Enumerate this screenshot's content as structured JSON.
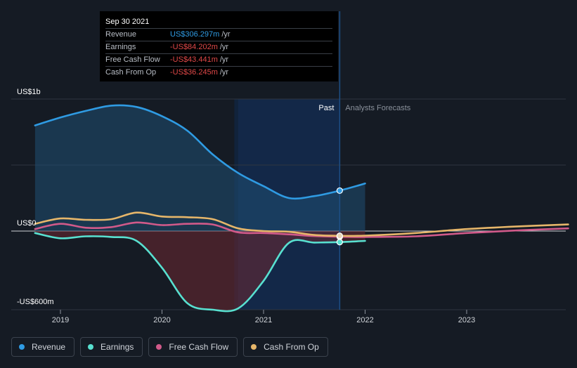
{
  "chart_data": {
    "type": "area",
    "y_unit_labels": [
      "US$1b",
      "US$0",
      "-US$600m"
    ],
    "ylim": [
      -600,
      1000
    ],
    "x_ticks": [
      2019,
      2020,
      2021,
      2022,
      2023
    ],
    "region_labels": {
      "past": "Past",
      "forecast": "Analysts Forecasts"
    },
    "series": [
      {
        "name": "Revenue",
        "color": "#2f9be3",
        "fill": "#1f4e73",
        "x": [
          2018.75,
          2019.0,
          2019.25,
          2019.5,
          2019.75,
          2020.0,
          2020.25,
          2020.5,
          2020.75,
          2021.0,
          2021.25,
          2021.5,
          2021.75,
          2022.0
        ],
        "y": [
          800,
          860,
          910,
          950,
          940,
          870,
          760,
          580,
          440,
          340,
          250,
          265,
          306.297,
          360
        ]
      },
      {
        "name": "Earnings",
        "color": "#58e0d0",
        "fill": "#6e2832",
        "x": [
          2018.75,
          2019.0,
          2019.25,
          2019.5,
          2019.75,
          2020.0,
          2020.25,
          2020.5,
          2020.75,
          2021.0,
          2021.25,
          2021.5,
          2021.75,
          2022.0
        ],
        "y": [
          -15,
          -55,
          -40,
          -45,
          -75,
          -280,
          -550,
          -600,
          -590,
          -380,
          -90,
          -88,
          -84.202,
          -75
        ]
      },
      {
        "name": "Free Cash Flow",
        "color": "#d15a8a",
        "x": [
          2018.75,
          2019.0,
          2019.25,
          2019.5,
          2019.75,
          2020.0,
          2020.25,
          2020.5,
          2020.75,
          2021.0,
          2021.25,
          2021.5,
          2021.75,
          2022.0,
          2022.5,
          2023.0,
          2023.5,
          2024.0
        ],
        "y": [
          15,
          55,
          25,
          30,
          65,
          45,
          55,
          50,
          -10,
          -15,
          -25,
          -38,
          -43.441,
          -45,
          -40,
          -15,
          5,
          20
        ]
      },
      {
        "name": "Cash From Op",
        "color": "#e6b66a",
        "x": [
          2018.75,
          2019.0,
          2019.25,
          2019.5,
          2019.75,
          2020.0,
          2020.25,
          2020.5,
          2020.75,
          2021.0,
          2021.25,
          2021.5,
          2021.75,
          2022.0,
          2022.5,
          2023.0,
          2023.5,
          2024.0
        ],
        "y": [
          55,
          95,
          85,
          90,
          140,
          110,
          105,
          90,
          20,
          0,
          -5,
          -30,
          -36.245,
          -35,
          -15,
          15,
          35,
          50
        ]
      }
    ],
    "tooltip": {
      "date": "Sep 30 2021",
      "rows": [
        {
          "label": "Revenue",
          "value": "US$306.297m",
          "unit": "/yr",
          "color": "#2f9be3"
        },
        {
          "label": "Earnings",
          "value": "-US$84.202m",
          "unit": "/yr",
          "color": "#e04848"
        },
        {
          "label": "Free Cash Flow",
          "value": "-US$43.441m",
          "unit": "/yr",
          "color": "#e04848"
        },
        {
          "label": "Cash From Op",
          "value": "-US$36.245m",
          "unit": "/yr",
          "color": "#e04848"
        }
      ]
    },
    "legend": [
      {
        "label": "Revenue",
        "color": "#2f9be3"
      },
      {
        "label": "Earnings",
        "color": "#58e0d0"
      },
      {
        "label": "Free Cash Flow",
        "color": "#d15a8a"
      },
      {
        "label": "Cash From Op",
        "color": "#e6b66a"
      }
    ],
    "grid": true,
    "legend_position": "bottom-left"
  }
}
